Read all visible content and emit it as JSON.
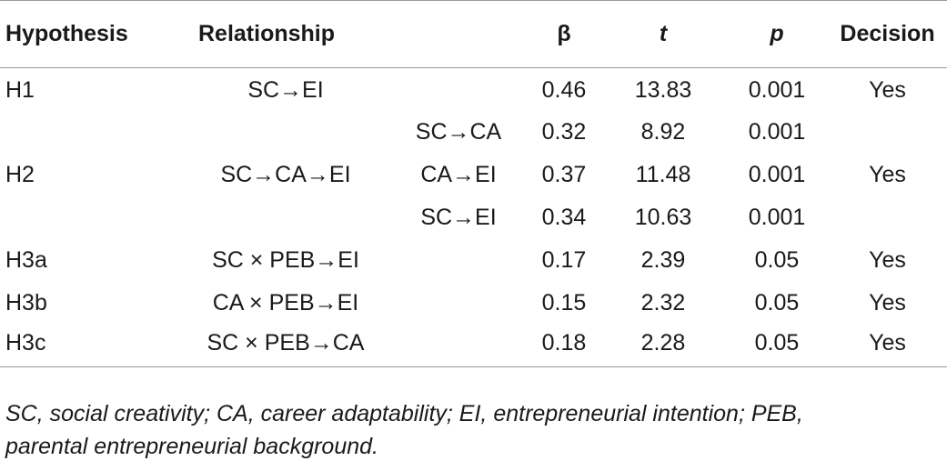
{
  "headers": {
    "hypothesis": "Hypothesis",
    "relationship": "Relationship",
    "sub": "",
    "beta": "β",
    "t": "t",
    "p": "p",
    "decision": "Decision"
  },
  "rows": [
    {
      "hypothesis": "H1",
      "relationship": "SC→EI",
      "sub": "",
      "beta": "0.46",
      "t": "13.83",
      "p": "0.001",
      "decision": "Yes"
    },
    {
      "hypothesis": "",
      "relationship": "",
      "sub": "SC→CA",
      "beta": "0.32",
      "t": "8.92",
      "p": "0.001",
      "decision": ""
    },
    {
      "hypothesis": "H2",
      "relationship": "SC→CA→EI",
      "sub": "CA→EI",
      "beta": "0.37",
      "t": "11.48",
      "p": "0.001",
      "decision": "Yes"
    },
    {
      "hypothesis": "",
      "relationship": "",
      "sub": "SC→EI",
      "beta": "0.34",
      "t": "10.63",
      "p": "0.001",
      "decision": ""
    },
    {
      "hypothesis": "H3a",
      "relationship": "SC × PEB→EI",
      "sub": "",
      "beta": "0.17",
      "t": "2.39",
      "p": "0.05",
      "decision": "Yes"
    },
    {
      "hypothesis": "H3b",
      "relationship": "CA × PEB→EI",
      "sub": "",
      "beta": "0.15",
      "t": "2.32",
      "p": "0.05",
      "decision": "Yes"
    },
    {
      "hypothesis": "H3c",
      "relationship": "SC × PEB→CA",
      "sub": "",
      "beta": "0.18",
      "t": "2.28",
      "p": "0.05",
      "decision": "Yes"
    }
  ],
  "footnote": {
    "line1": "SC, social creativity; CA, career adaptability; EI, entrepreneurial intention; PEB,",
    "line2": "parental entrepreneurial background."
  }
}
